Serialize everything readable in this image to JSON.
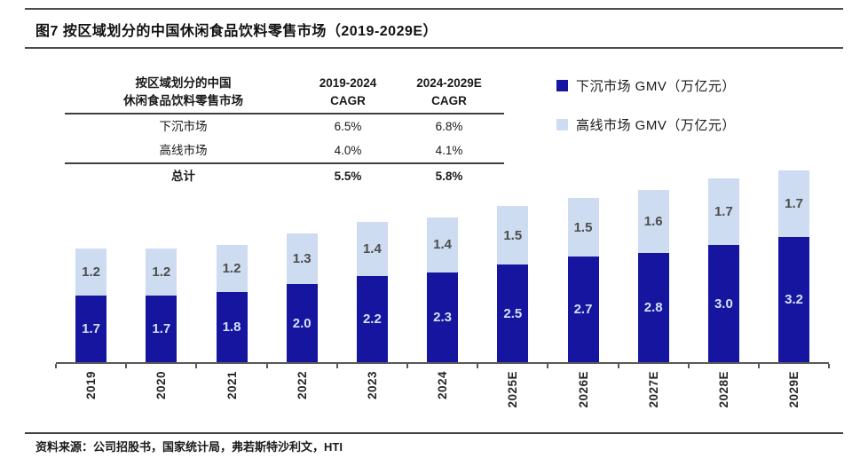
{
  "title": "图7 按区域划分的中国休闲食品饮料零售市场（2019-2029E）",
  "table": {
    "header": {
      "col1_line1": "按区域划分的中国",
      "col1_line2": "休闲食品饮料零售市场",
      "col2_line1": "2019-2024",
      "col2_line2": "CAGR",
      "col3_line1": "2024-2029E",
      "col3_line2": "CAGR"
    },
    "rows": [
      {
        "label": "下沉市场",
        "cagr1": "6.5%",
        "cagr2": "6.8%"
      },
      {
        "label": "高线市场",
        "cagr1": "4.0%",
        "cagr2": "4.1%"
      }
    ],
    "total": {
      "label": "总计",
      "cagr1": "5.5%",
      "cagr2": "5.8%"
    }
  },
  "legend": [
    {
      "label": "下沉市场 GMV（万亿元）",
      "color": "#1515a0"
    },
    {
      "label": "高线市场 GMV（万亿元）",
      "color": "#cddcf0"
    }
  ],
  "chart_data": {
    "type": "bar",
    "stacked": true,
    "title": "按区域划分的中国休闲食品饮料零售市场（2019-2029E）",
    "unit": "万亿元",
    "categories": [
      "2019",
      "2020",
      "2021",
      "2022",
      "2023",
      "2024",
      "2025E",
      "2026E",
      "2027E",
      "2028E",
      "2029E"
    ],
    "series": [
      {
        "name": "下沉市场 GMV（万亿元）",
        "color": "#1515a0",
        "label_color": "#d5e0f2",
        "values": [
          1.7,
          1.7,
          1.8,
          2.0,
          2.2,
          2.3,
          2.5,
          2.7,
          2.8,
          3.0,
          3.2
        ]
      },
      {
        "name": "高线市场 GMV（万亿元）",
        "color": "#cddcf0",
        "label_color": "#4d4d4d",
        "values": [
          1.2,
          1.2,
          1.2,
          1.3,
          1.4,
          1.4,
          1.5,
          1.5,
          1.6,
          1.7,
          1.7
        ]
      }
    ],
    "totals": [
      2.9,
      2.9,
      3.0,
      3.3,
      3.6,
      3.7,
      4.0,
      4.2,
      4.4,
      4.7,
      4.9
    ],
    "xlabel": "",
    "ylabel": "GMV（万亿元）",
    "ylim": [
      0,
      5.2
    ],
    "grid": false,
    "legend_position": "top-right"
  },
  "footer": "资料来源：公司招股书，国家统计局，弗若斯特沙利文，HTI"
}
